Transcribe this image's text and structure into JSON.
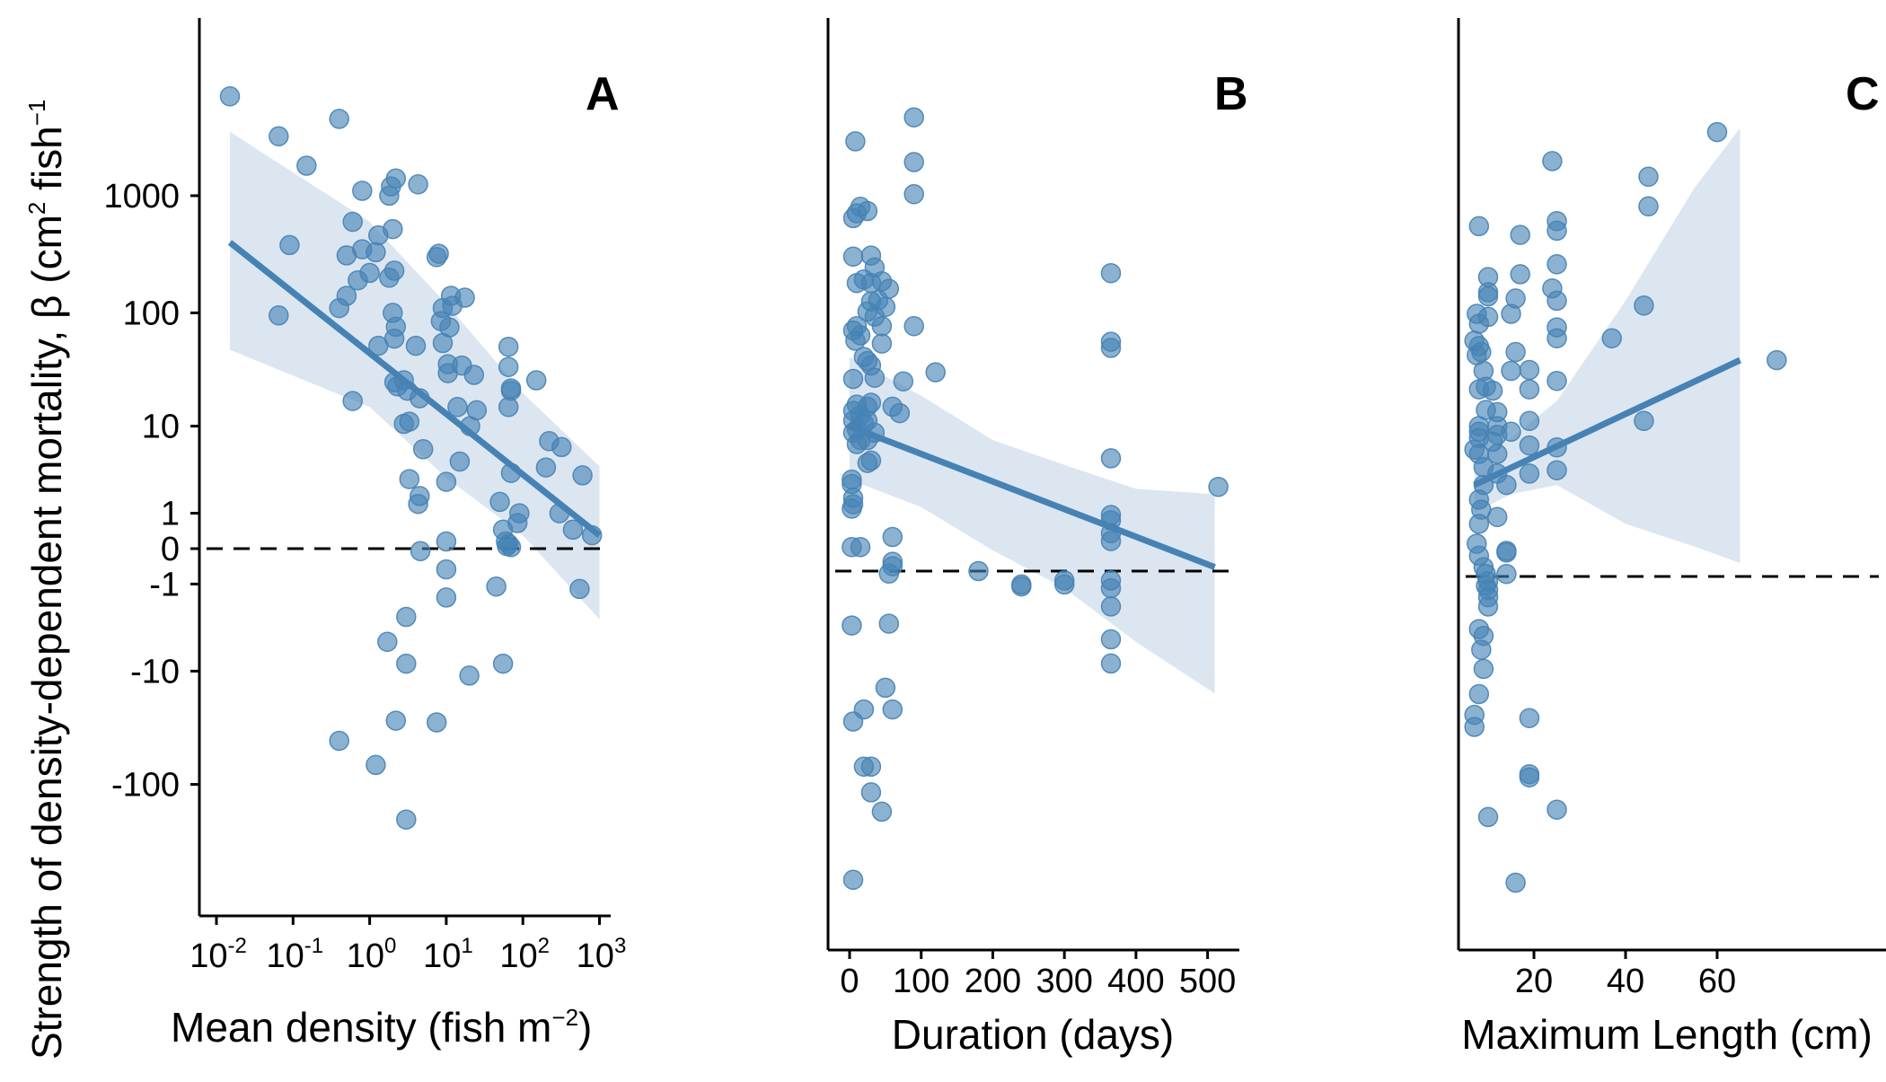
{
  "colors": {
    "point": "#4682B4",
    "line": "#4682B4",
    "ribbon": "#D6E2EE"
  },
  "y_axis_title": {
    "main": "Strength of density-dependent mortality, β (cm",
    "sup1": "2",
    "mid": " fish",
    "sup2": "−1"
  },
  "chart_data": [
    {
      "type": "scatter",
      "panel_label": "A",
      "x_scale": "log10",
      "xlabel": "Mean density (fish m",
      "xlabel_sup": "−2",
      "xlabel_close": ")",
      "xlim": [
        0.01,
        1000
      ],
      "x_ticks": [
        {
          "base": "10",
          "exp": "-2",
          "value": 0.01
        },
        {
          "base": "10",
          "exp": "-1",
          "value": 0.1
        },
        {
          "base": "10",
          "exp": "0",
          "value": 1
        },
        {
          "base": "10",
          "exp": "1",
          "value": 10
        },
        {
          "base": "10",
          "exp": "2",
          "value": 100
        },
        {
          "base": "10",
          "exp": "3",
          "value": 1000
        }
      ],
      "y_scale": "pseudo_log10",
      "y_ticks": [
        "1000",
        "100",
        "10",
        "1",
        "0",
        "-1",
        "-10",
        "-100"
      ],
      "y_tick_values": [
        1000,
        100,
        10,
        1,
        0,
        -1,
        -10,
        -100
      ],
      "reference_line_y": 0,
      "fit_line": [
        [
          0.015,
          400
        ],
        [
          1000,
          0.3
        ]
      ],
      "ribbon": [
        [
          0.015,
          3500,
          48
        ],
        [
          1,
          600,
          15
        ],
        [
          10,
          120,
          3
        ],
        [
          100,
          20,
          0.3
        ],
        [
          1000,
          4,
          -3
        ]
      ],
      "points": [
        [
          0.015,
          7000
        ],
        [
          0.065,
          3200
        ],
        [
          0.09,
          380
        ],
        [
          0.065,
          95
        ],
        [
          0.15,
          1800
        ],
        [
          0.4,
          4500
        ],
        [
          0.6,
          600
        ],
        [
          0.5,
          310
        ],
        [
          0.8,
          1100
        ],
        [
          0.8,
          350
        ],
        [
          0.7,
          190
        ],
        [
          1,
          220
        ],
        [
          1.2,
          330
        ],
        [
          1.3,
          460
        ],
        [
          0.5,
          140
        ],
        [
          0.4,
          110
        ],
        [
          0.6,
          17
        ],
        [
          1.3,
          52
        ],
        [
          1.8,
          1000
        ],
        [
          1.9,
          1200
        ],
        [
          2,
          520
        ],
        [
          2.2,
          1400
        ],
        [
          1.8,
          200
        ],
        [
          2.1,
          230
        ],
        [
          2,
          100
        ],
        [
          2.2,
          76
        ],
        [
          2.1,
          60
        ],
        [
          2.1,
          25
        ],
        [
          2.3,
          23
        ],
        [
          2.8,
          26
        ],
        [
          3.1,
          21
        ],
        [
          3.3,
          11
        ],
        [
          2.8,
          10.5
        ],
        [
          4.3,
          1250
        ],
        [
          4,
          52
        ],
        [
          4.5,
          18
        ],
        [
          5,
          6
        ],
        [
          4.5,
          1.8
        ],
        [
          4.3,
          1.4
        ],
        [
          3.3,
          2.9
        ],
        [
          4.6,
          -0.05
        ],
        [
          7.5,
          300
        ],
        [
          8,
          320
        ],
        [
          9,
          110
        ],
        [
          8.5,
          85
        ],
        [
          9,
          55
        ],
        [
          10.5,
          36
        ],
        [
          10.5,
          30
        ],
        [
          11,
          75
        ],
        [
          11.5,
          140
        ],
        [
          12,
          115
        ],
        [
          17.5,
          135
        ],
        [
          16,
          35
        ],
        [
          14,
          15
        ],
        [
          15,
          4.5
        ],
        [
          20.5,
          10
        ],
        [
          23,
          29
        ],
        [
          25,
          14
        ],
        [
          10,
          2.7
        ],
        [
          10,
          0.15
        ],
        [
          10,
          -0.5
        ],
        [
          10,
          -1.6
        ],
        [
          3,
          -2.8
        ],
        [
          3,
          -8.5
        ],
        [
          1.7,
          -5.2
        ],
        [
          2.2,
          -28
        ],
        [
          7.5,
          -29
        ],
        [
          20,
          -11
        ],
        [
          55,
          -8.5
        ],
        [
          45,
          -1.1
        ],
        [
          50,
          1.5
        ],
        [
          55,
          0.45
        ],
        [
          60,
          0.15
        ],
        [
          62,
          0.05
        ],
        [
          70,
          0.03
        ],
        [
          65,
          0.1
        ],
        [
          70,
          3.4
        ],
        [
          65,
          15
        ],
        [
          70,
          21
        ],
        [
          70,
          22
        ],
        [
          65,
          34
        ],
        [
          65,
          51
        ],
        [
          90,
          1
        ],
        [
          85,
          0.65
        ],
        [
          200,
          3.9
        ],
        [
          220,
          7.2
        ],
        [
          320,
          6.3
        ],
        [
          300,
          1
        ],
        [
          450,
          0.45
        ],
        [
          600,
          3.2
        ],
        [
          550,
          -1.2
        ],
        [
          800,
          0.3
        ],
        [
          150,
          26
        ],
        [
          0.4,
          -42
        ],
        [
          1.2,
          -68
        ],
        [
          3,
          -200
        ]
      ]
    },
    {
      "type": "scatter",
      "panel_label": "B",
      "x_scale": "linear",
      "xlabel": "Duration (days)",
      "xlim": [
        0,
        500
      ],
      "x_ticks": [
        "0",
        "100",
        "200",
        "300",
        "400",
        "500"
      ],
      "x_tick_values": [
        0,
        100,
        200,
        300,
        400,
        500
      ],
      "y_scale": "pseudo_log10",
      "reference_line_y": 0,
      "fit_line": [
        [
          0,
          16
        ],
        [
          510,
          0.08
        ]
      ],
      "ribbon": [
        [
          0,
          65,
          5
        ],
        [
          100,
          30,
          2.5
        ],
        [
          200,
          12,
          0.5
        ],
        [
          300,
          7,
          -0.4
        ],
        [
          400,
          4,
          -3
        ],
        [
          510,
          3.5,
          -10
        ]
      ],
      "points": [
        [
          8,
          4500
        ],
        [
          5,
          1000
        ],
        [
          10,
          1100
        ],
        [
          15,
          1250
        ],
        [
          25,
          1150
        ],
        [
          5,
          470
        ],
        [
          10,
          280
        ],
        [
          30,
          480
        ],
        [
          35,
          380
        ],
        [
          20,
          300
        ],
        [
          30,
          280
        ],
        [
          45,
          290
        ],
        [
          40,
          200
        ],
        [
          30,
          195
        ],
        [
          25,
          160
        ],
        [
          35,
          145
        ],
        [
          55,
          250
        ],
        [
          50,
          175
        ],
        [
          45,
          120
        ],
        [
          5,
          110
        ],
        [
          10,
          120
        ],
        [
          8,
          90
        ],
        [
          15,
          100
        ],
        [
          45,
          85
        ],
        [
          20,
          65
        ],
        [
          30,
          55
        ],
        [
          25,
          60
        ],
        [
          5,
          42
        ],
        [
          35,
          43
        ],
        [
          10,
          25
        ],
        [
          15,
          20
        ],
        [
          5,
          22
        ],
        [
          25,
          24
        ],
        [
          30,
          26
        ],
        [
          5,
          18
        ],
        [
          10,
          15
        ],
        [
          20,
          17
        ],
        [
          25,
          18
        ],
        [
          35,
          14
        ],
        [
          15,
          12
        ],
        [
          10,
          11
        ],
        [
          25,
          12
        ],
        [
          5,
          14
        ],
        [
          3,
          5
        ],
        [
          3,
          4.5
        ],
        [
          5,
          3.2
        ],
        [
          5,
          2.7
        ],
        [
          3,
          2.4
        ],
        [
          25,
          7.3
        ],
        [
          30,
          7.7
        ],
        [
          90,
          7200
        ],
        [
          90,
          3000
        ],
        [
          90,
          1600
        ],
        [
          90,
          120
        ],
        [
          120,
          48
        ],
        [
          75,
          40
        ],
        [
          60,
          24
        ],
        [
          70,
          21
        ],
        [
          3,
          0.6
        ],
        [
          15,
          0.6
        ],
        [
          60,
          0.95
        ],
        [
          60,
          0.2
        ],
        [
          60,
          0.1
        ],
        [
          55,
          -0.05
        ],
        [
          55,
          -1.8
        ],
        [
          3,
          -1.9
        ],
        [
          50,
          -8.8
        ],
        [
          60,
          -14
        ],
        [
          20,
          -14
        ],
        [
          5,
          -18
        ],
        [
          20,
          -45
        ],
        [
          30,
          -45
        ],
        [
          30,
          -75
        ],
        [
          45,
          -110
        ],
        [
          5,
          -420
        ],
        [
          180,
          0
        ],
        [
          240,
          -0.3
        ],
        [
          300,
          -0.2
        ],
        [
          300,
          -0.3
        ],
        [
          365,
          340
        ],
        [
          365,
          88
        ],
        [
          365,
          78
        ],
        [
          365,
          8.1
        ],
        [
          365,
          2
        ],
        [
          365,
          1.7
        ],
        [
          365,
          1.1
        ],
        [
          365,
          0.8
        ],
        [
          365,
          -0.2
        ],
        [
          365,
          -0.4
        ],
        [
          365,
          -1
        ],
        [
          365,
          -2.8
        ],
        [
          365,
          -5.1
        ],
        [
          515,
          4.2
        ],
        [
          240,
          -0.35
        ]
      ]
    },
    {
      "type": "scatter",
      "panel_label": "C",
      "x_scale": "linear",
      "xlabel": "Maximum Length (cm)",
      "xlim": [
        4,
        72
      ],
      "x_ticks": [
        "20",
        "40",
        "60"
      ],
      "x_tick_values": [
        20,
        40,
        60
      ],
      "y_scale": "pseudo_log10",
      "reference_line_y": 0,
      "fit_line": [
        [
          7,
          5
        ],
        [
          65,
          68
        ]
      ],
      "ribbon": [
        [
          7,
          8.5,
          2.5
        ],
        [
          15,
          14,
          4
        ],
        [
          25,
          30,
          5
        ],
        [
          40,
          220,
          1.8
        ],
        [
          55,
          2000,
          0.8
        ],
        [
          65,
          6500,
          0.3
        ]
      ],
      "points": [
        [
          8,
          950
        ],
        [
          7.5,
          170
        ],
        [
          8,
          140
        ],
        [
          7,
          100
        ],
        [
          8,
          90
        ],
        [
          8.5,
          80
        ],
        [
          7.5,
          75
        ],
        [
          9,
          55
        ],
        [
          8,
          38
        ],
        [
          9.5,
          40
        ],
        [
          10,
          350
        ],
        [
          10,
          260
        ],
        [
          10,
          240
        ],
        [
          10,
          160
        ],
        [
          9.5,
          25
        ],
        [
          8,
          18
        ],
        [
          8,
          16
        ],
        [
          8,
          14
        ],
        [
          7,
          11
        ],
        [
          8,
          10
        ],
        [
          9,
          7.5
        ],
        [
          9,
          5
        ],
        [
          8,
          3.5
        ],
        [
          8.5,
          2.7
        ],
        [
          8,
          1.8
        ],
        [
          7.5,
          0.9
        ],
        [
          8,
          0.5
        ],
        [
          9,
          0.2
        ],
        [
          9.5,
          0.05
        ],
        [
          10,
          -0.1
        ],
        [
          9.5,
          -0.2
        ],
        [
          10,
          -0.3
        ],
        [
          10,
          -0.5
        ],
        [
          10,
          -0.8
        ],
        [
          8,
          -1.8
        ],
        [
          9,
          -2.2
        ],
        [
          8.5,
          -3.2
        ],
        [
          9,
          -5.1
        ],
        [
          8,
          -9
        ],
        [
          7,
          -14
        ],
        [
          7,
          -18
        ],
        [
          10,
          -110
        ],
        [
          11,
          37
        ],
        [
          12,
          24
        ],
        [
          12,
          18
        ],
        [
          12,
          15
        ],
        [
          11,
          13
        ],
        [
          12,
          10
        ],
        [
          12,
          6.5
        ],
        [
          14,
          5
        ],
        [
          12,
          2.2
        ],
        [
          14,
          0.65
        ],
        [
          14,
          0.6
        ],
        [
          14,
          0.05
        ],
        [
          15,
          170
        ],
        [
          15,
          55
        ],
        [
          16,
          80
        ],
        [
          16,
          230
        ],
        [
          17,
          370
        ],
        [
          17,
          800
        ],
        [
          15,
          16
        ],
        [
          19,
          56
        ],
        [
          19,
          38
        ],
        [
          19,
          20
        ],
        [
          19,
          12
        ],
        [
          19,
          6.5
        ],
        [
          19,
          -15
        ],
        [
          19,
          -47
        ],
        [
          19,
          -50
        ],
        [
          16,
          -400
        ],
        [
          24,
          3400
        ],
        [
          25,
          1050
        ],
        [
          25,
          870
        ],
        [
          25,
          450
        ],
        [
          24,
          280
        ],
        [
          25,
          220
        ],
        [
          25,
          130
        ],
        [
          25,
          105
        ],
        [
          25,
          45
        ],
        [
          25,
          11.5
        ],
        [
          25,
          7
        ],
        [
          25,
          -95
        ],
        [
          37,
          105
        ],
        [
          44,
          200
        ],
        [
          44,
          20
        ],
        [
          45,
          2500
        ],
        [
          45,
          1400
        ],
        [
          60,
          6000
        ],
        [
          73,
          68
        ]
      ]
    }
  ]
}
